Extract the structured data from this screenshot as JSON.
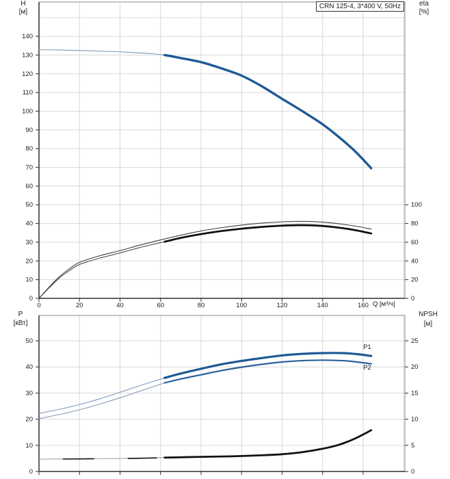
{
  "colors": {
    "curve_blue": "#1e5a96",
    "curve_blue_thin": "#7e99b8",
    "curve_black": "#111111",
    "curve_black_thin": "#3c3c3c",
    "npsh_thin": "#999999",
    "npsh_dash": "#1a1a1a",
    "label_blue": "#2f639c",
    "grid": "#d8d8d8",
    "border": "#8a8a8a",
    "axis": "#2e2e2e",
    "text": "#1a1a1a"
  },
  "chart_data": [
    {
      "id": "head-efficiency",
      "type": "line",
      "title": "CRN 125-4, 3*400 V, 50Hz",
      "x_axis": {
        "label": "Q [м³/ч]",
        "min": 0,
        "max": 180.6,
        "tick_labels": [
          0,
          20,
          40,
          60,
          80,
          100,
          120,
          140,
          160
        ],
        "gridlines": [
          20,
          40,
          60,
          80,
          100,
          120,
          140,
          160,
          180
        ]
      },
      "y_left": {
        "label": "H",
        "unit": "[м]",
        "min": 0,
        "max": 158.3,
        "tick_labels": [
          0,
          10,
          20,
          30,
          40,
          50,
          60,
          70,
          80,
          90,
          100,
          110,
          120,
          130,
          140
        ],
        "gridlines": [
          10,
          20,
          30,
          40,
          50,
          60,
          70,
          80,
          90,
          100,
          110,
          120,
          130,
          140,
          150
        ]
      },
      "y_right": {
        "label": "eta",
        "unit": "[%]",
        "min": 0,
        "max": 316.6,
        "tick_labels": [
          0,
          20,
          40,
          60,
          80,
          100
        ]
      },
      "series": [
        {
          "name": "H-curve",
          "axis": "left",
          "split_q": 62,
          "thin": {
            "color": "#7e99b8",
            "width": 1.1
          },
          "thick": {
            "color": "#1e5a96",
            "width": 3.4
          },
          "points": [
            [
              0,
              132.8
            ],
            [
              10,
              132.7
            ],
            [
              20,
              132.4
            ],
            [
              30,
              132.1
            ],
            [
              40,
              131.7
            ],
            [
              50,
              131.1
            ],
            [
              56,
              130.7
            ],
            [
              62,
              130
            ],
            [
              70,
              128.4
            ],
            [
              80,
              126.2
            ],
            [
              90,
              122.9
            ],
            [
              100,
              119
            ],
            [
              110,
              113.3
            ],
            [
              120,
              106.6
            ],
            [
              130,
              100
            ],
            [
              140,
              93
            ],
            [
              148,
              86.2
            ],
            [
              156,
              78.6
            ],
            [
              164,
              69.5
            ]
          ]
        },
        {
          "name": "eta-pump-curve",
          "axis": "right",
          "split_q": 999,
          "thin": {
            "color": "#3c3c3c",
            "width": 1.1
          },
          "points": [
            [
              0,
              0
            ],
            [
              5,
              12
            ],
            [
              10,
              23
            ],
            [
              15,
              31.5
            ],
            [
              20,
              38.5
            ],
            [
              30,
              45.5
            ],
            [
              40,
              51
            ],
            [
              50,
              57
            ],
            [
              62,
              63.5
            ],
            [
              70,
              67.5
            ],
            [
              80,
              72
            ],
            [
              90,
              75.5
            ],
            [
              100,
              78.3
            ],
            [
              110,
              80.4
            ],
            [
              120,
              81.8
            ],
            [
              128,
              82.3
            ],
            [
              136,
              82
            ],
            [
              145,
              80.5
            ],
            [
              155,
              77.6
            ],
            [
              164,
              74
            ]
          ]
        },
        {
          "name": "eta-total-curve",
          "axis": "right",
          "split_q": 62,
          "thin": {
            "color": "#3c3c3c",
            "width": 1
          },
          "thick": {
            "color": "#111111",
            "width": 2.8
          },
          "points": [
            [
              0,
              0
            ],
            [
              5,
              11.2
            ],
            [
              10,
              21.6
            ],
            [
              15,
              29.6
            ],
            [
              20,
              36.2
            ],
            [
              30,
              43
            ],
            [
              40,
              48.5
            ],
            [
              50,
              54.4
            ],
            [
              62,
              60.5
            ],
            [
              70,
              64.6
            ],
            [
              80,
              68.6
            ],
            [
              90,
              71.9
            ],
            [
              100,
              74.4
            ],
            [
              110,
              76.3
            ],
            [
              120,
              77.7
            ],
            [
              128,
              78.2
            ],
            [
              136,
              77.9
            ],
            [
              145,
              76.3
            ],
            [
              155,
              73.3
            ],
            [
              164,
              69.3
            ]
          ]
        }
      ]
    },
    {
      "id": "power-npsh",
      "type": "line",
      "x_axis": {
        "label": "",
        "min": 0,
        "max": 180.6,
        "tick_labels": [],
        "tick_marks": [
          0,
          20,
          40,
          60,
          80,
          100,
          120,
          140,
          160
        ],
        "gridlines": [
          20,
          40,
          60,
          80,
          100,
          120,
          140,
          160,
          180
        ]
      },
      "y_left": {
        "label": "P",
        "unit": "[кВт]",
        "min": 0,
        "max": 59.7,
        "tick_labels": [
          0,
          10,
          20,
          30,
          40,
          50
        ],
        "gridlines": [
          10,
          20,
          30,
          40,
          50
        ]
      },
      "y_right": {
        "label": "NPSH",
        "unit": "[м]",
        "min": 0,
        "max": 29.85,
        "tick_labels": [
          0,
          5,
          10,
          15,
          20,
          25
        ]
      },
      "series": [
        {
          "name": "P1-curve",
          "axis": "left",
          "split_q": 62,
          "thin": {
            "color": "#7e99b8",
            "width": 1.1
          },
          "thick": {
            "color": "#1e5a96",
            "width": 3.2
          },
          "label": {
            "text": "P1",
            "q": 162,
            "v": 46.9,
            "color": "#2f639c"
          },
          "points": [
            [
              0,
              22.2
            ],
            [
              10,
              23.8
            ],
            [
              20,
              25.6
            ],
            [
              30,
              27.8
            ],
            [
              40,
              30.3
            ],
            [
              50,
              32.9
            ],
            [
              62,
              35.8
            ],
            [
              70,
              37.5
            ],
            [
              80,
              39.3
            ],
            [
              90,
              41
            ],
            [
              100,
              42.3
            ],
            [
              110,
              43.4
            ],
            [
              120,
              44.4
            ],
            [
              130,
              45
            ],
            [
              140,
              45.3
            ],
            [
              150,
              45.3
            ],
            [
              157,
              44.9
            ],
            [
              164,
              44.2
            ]
          ]
        },
        {
          "name": "P2-curve",
          "axis": "left",
          "split_q": 62,
          "thin": {
            "color": "#7e99b8",
            "width": 1.1
          },
          "thick": {
            "color": "#2a6099",
            "width": 2.2
          },
          "label": {
            "text": "P2",
            "q": 162,
            "v": 39,
            "color": "#2f639c"
          },
          "points": [
            [
              0,
              20.2
            ],
            [
              10,
              21.8
            ],
            [
              20,
              23.6
            ],
            [
              30,
              25.8
            ],
            [
              40,
              28.2
            ],
            [
              50,
              30.8
            ],
            [
              62,
              33.9
            ],
            [
              70,
              35.4
            ],
            [
              80,
              37
            ],
            [
              90,
              38.6
            ],
            [
              100,
              39.9
            ],
            [
              110,
              41
            ],
            [
              120,
              41.9
            ],
            [
              130,
              42.4
            ],
            [
              140,
              42.6
            ],
            [
              150,
              42.4
            ],
            [
              157,
              41.9
            ],
            [
              164,
              41.2
            ]
          ]
        },
        {
          "name": "NPSH-curve",
          "axis": "right",
          "split_q": 62,
          "thin": {
            "color": "#999999",
            "width": 1
          },
          "thick": {
            "color": "#111111",
            "width": 2.8
          },
          "points": [
            [
              0,
              2.35
            ],
            [
              15,
              2.4
            ],
            [
              30,
              2.45
            ],
            [
              45,
              2.5
            ],
            [
              62,
              2.65
            ],
            [
              80,
              2.8
            ],
            [
              95,
              2.9
            ],
            [
              110,
              3.1
            ],
            [
              120,
              3.3
            ],
            [
              130,
              3.7
            ],
            [
              140,
              4.35
            ],
            [
              148,
              5.1
            ],
            [
              156,
              6.3
            ],
            [
              164,
              7.9
            ]
          ]
        },
        {
          "name": "NPSH-overlap-segment-1",
          "axis": "right",
          "split_q": 999,
          "thin": {
            "color": "#1a1a1a",
            "width": 1.7
          },
          "points": [
            [
              12,
              2.38
            ],
            [
              20,
              2.41
            ],
            [
              27,
              2.43
            ]
          ]
        },
        {
          "name": "NPSH-overlap-segment-2",
          "axis": "right",
          "split_q": 999,
          "thin": {
            "color": "#1a1a1a",
            "width": 1.7
          },
          "points": [
            [
              44,
              2.5
            ],
            [
              51,
              2.54
            ],
            [
              58,
              2.6
            ]
          ]
        }
      ]
    }
  ]
}
